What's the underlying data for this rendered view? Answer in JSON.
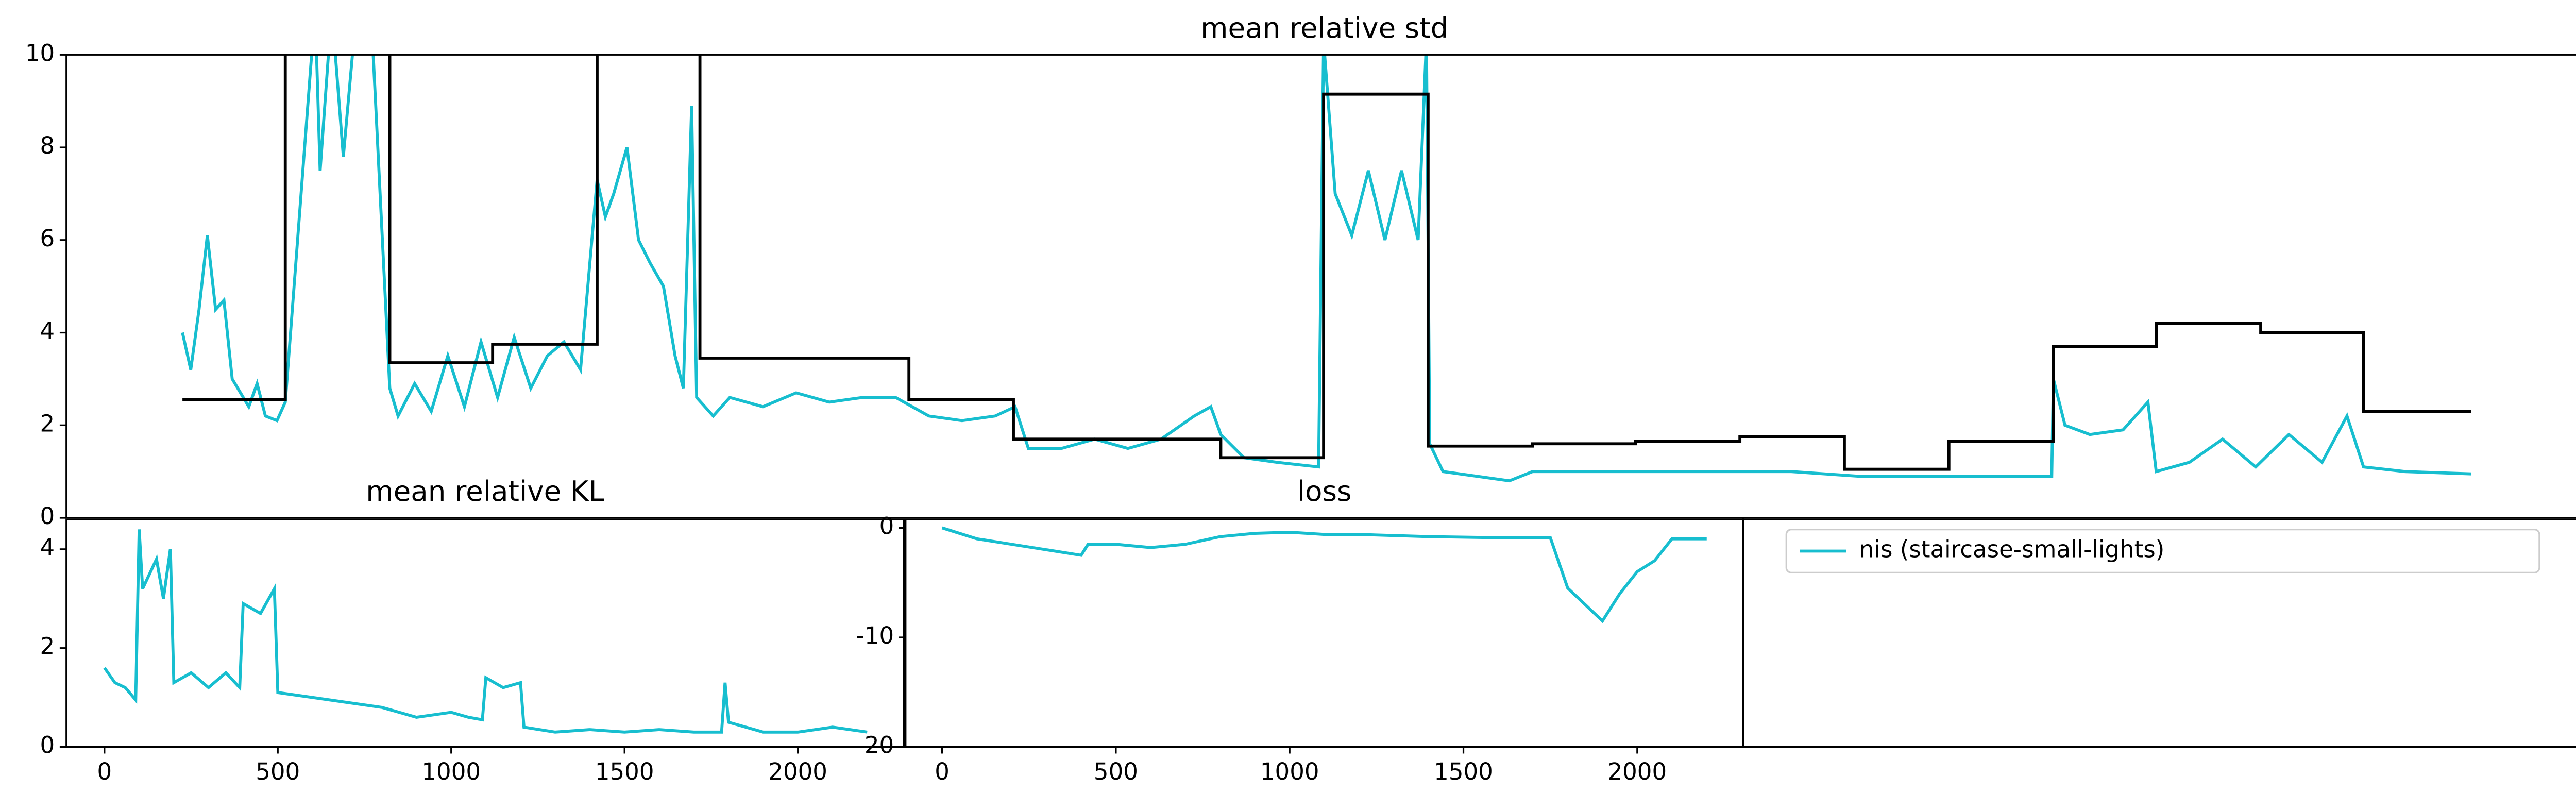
{
  "chart_data": [
    {
      "type": "line",
      "title": "mean relative std",
      "xlim": [
        0,
        1517
      ],
      "ylim": [
        0,
        10
      ],
      "yticks": [
        0,
        2,
        4,
        6,
        8,
        10
      ],
      "series": [
        {
          "color": "#17becf",
          "x": [
            70,
            75,
            80,
            85,
            90,
            95,
            100,
            105,
            110,
            115,
            120,
            127,
            132,
            150,
            153,
            160,
            167,
            175,
            185,
            195,
            200,
            210,
            220,
            230,
            240,
            250,
            260,
            270,
            280,
            290,
            300,
            310,
            320,
            325,
            330,
            338,
            345,
            352,
            360,
            367,
            372,
            377,
            380,
            390,
            400,
            420,
            440,
            460,
            480,
            500,
            520,
            540,
            560,
            572,
            580,
            600,
            620,
            640,
            660,
            680,
            690,
            696,
            710,
            730,
            755,
            758,
            765,
            775,
            785,
            795,
            805,
            815,
            820,
            822,
            830,
            850,
            870,
            884,
            920,
            960,
            1000,
            1040,
            1080,
            1120,
            1160,
            1197,
            1198,
            1205,
            1220,
            1240,
            1255,
            1260,
            1280,
            1300,
            1320,
            1340,
            1360,
            1375,
            1385,
            1410,
            1450
          ],
          "values": [
            4.0,
            3.2,
            4.5,
            6.1,
            4.5,
            4.7,
            3.0,
            2.7,
            2.4,
            2.9,
            2.2,
            2.1,
            2.5,
            11,
            7.5,
            11,
            7.8,
            11,
            10,
            2.8,
            2.2,
            2.9,
            2.3,
            3.5,
            2.4,
            3.8,
            2.6,
            3.9,
            2.8,
            3.5,
            3.8,
            3.2,
            7.3,
            6.5,
            7.0,
            8.0,
            6.0,
            5.5,
            5.0,
            3.5,
            2.8,
            8.9,
            2.6,
            2.2,
            2.6,
            2.4,
            2.7,
            2.5,
            2.6,
            2.6,
            2.2,
            2.1,
            2.2,
            2.4,
            1.5,
            1.5,
            1.7,
            1.5,
            1.7,
            2.2,
            2.4,
            1.8,
            1.3,
            1.2,
            1.1,
            10.3,
            7.0,
            6.1,
            7.5,
            6.0,
            7.5,
            6.0,
            10.3,
            1.6,
            1.0,
            0.9,
            0.8,
            1.0,
            1.0,
            1.0,
            1.0,
            1.0,
            0.9,
            0.9,
            0.9,
            0.9,
            3.0,
            2.0,
            1.8,
            1.9,
            2.5,
            1.0,
            1.2,
            1.7,
            1.1,
            1.8,
            1.2,
            2.2,
            1.1,
            1.0,
            0.95
          ]
        },
        {
          "color": "#000000",
          "drawstyle": "steps-post",
          "x": [
            70,
            132,
            195,
            257,
            320,
            382,
            508,
            571,
            696,
            758,
            821,
            884,
            946,
            1009,
            1072,
            1135,
            1198,
            1260,
            1323,
            1385,
            1450
          ],
          "values": [
            2.55,
            12,
            3.35,
            3.75,
            12,
            3.45,
            2.55,
            1.7,
            1.3,
            9.15,
            1.55,
            1.6,
            1.65,
            1.75,
            1.05,
            1.65,
            3.7,
            4.2,
            4.0,
            2.3,
            2.3
          ]
        }
      ]
    },
    {
      "type": "line",
      "title": "mean relative KL",
      "xlim": [
        -110,
        2306
      ],
      "xticks": [
        0,
        500,
        1000,
        1500,
        2000
      ],
      "ylim": [
        0,
        4.6
      ],
      "yticks": [
        0,
        2,
        4
      ],
      "legend": "third-panel",
      "series": [
        {
          "name": "nis (staircase-small-lights)",
          "color": "#17becf",
          "x": [
            0,
            30,
            60,
            90,
            100,
            110,
            150,
            170,
            190,
            200,
            250,
            300,
            350,
            390,
            400,
            450,
            490,
            500,
            600,
            700,
            800,
            900,
            1000,
            1050,
            1090,
            1100,
            1150,
            1200,
            1210,
            1300,
            1400,
            1500,
            1600,
            1700,
            1780,
            1790,
            1800,
            1900,
            2000,
            2100,
            2200
          ],
          "values": [
            1.6,
            1.3,
            1.2,
            0.95,
            4.4,
            3.2,
            3.8,
            3.0,
            4.0,
            1.3,
            1.5,
            1.2,
            1.5,
            1.2,
            2.9,
            2.7,
            3.2,
            1.1,
            1.0,
            0.9,
            0.8,
            0.6,
            0.7,
            0.6,
            0.55,
            1.4,
            1.2,
            1.3,
            0.4,
            0.3,
            0.35,
            0.3,
            0.35,
            0.3,
            0.3,
            1.3,
            0.5,
            0.3,
            0.3,
            0.4,
            0.3
          ]
        }
      ]
    },
    {
      "type": "line",
      "title": "loss",
      "xlim": [
        -105,
        2305
      ],
      "xticks": [
        0,
        500,
        1000,
        1500,
        2000
      ],
      "ylim": [
        -20,
        0.76
      ],
      "yticks": [
        -20,
        -10,
        0
      ],
      "series": [
        {
          "color": "#17becf",
          "x": [
            0,
            50,
            100,
            200,
            300,
            400,
            420,
            500,
            600,
            700,
            800,
            900,
            1000,
            1100,
            1200,
            1400,
            1600,
            1750,
            1800,
            1850,
            1900,
            1950,
            2000,
            2050,
            2100,
            2200
          ],
          "values": [
            0,
            -0.5,
            -1,
            -1.5,
            -2,
            -2.5,
            -1.5,
            -1.5,
            -1.8,
            -1.5,
            -0.8,
            -0.5,
            -0.4,
            -0.6,
            -0.6,
            -0.8,
            -0.9,
            -0.9,
            -5.5,
            -7,
            -8.5,
            -6,
            -4,
            -3,
            -1,
            -1
          ]
        }
      ]
    }
  ]
}
